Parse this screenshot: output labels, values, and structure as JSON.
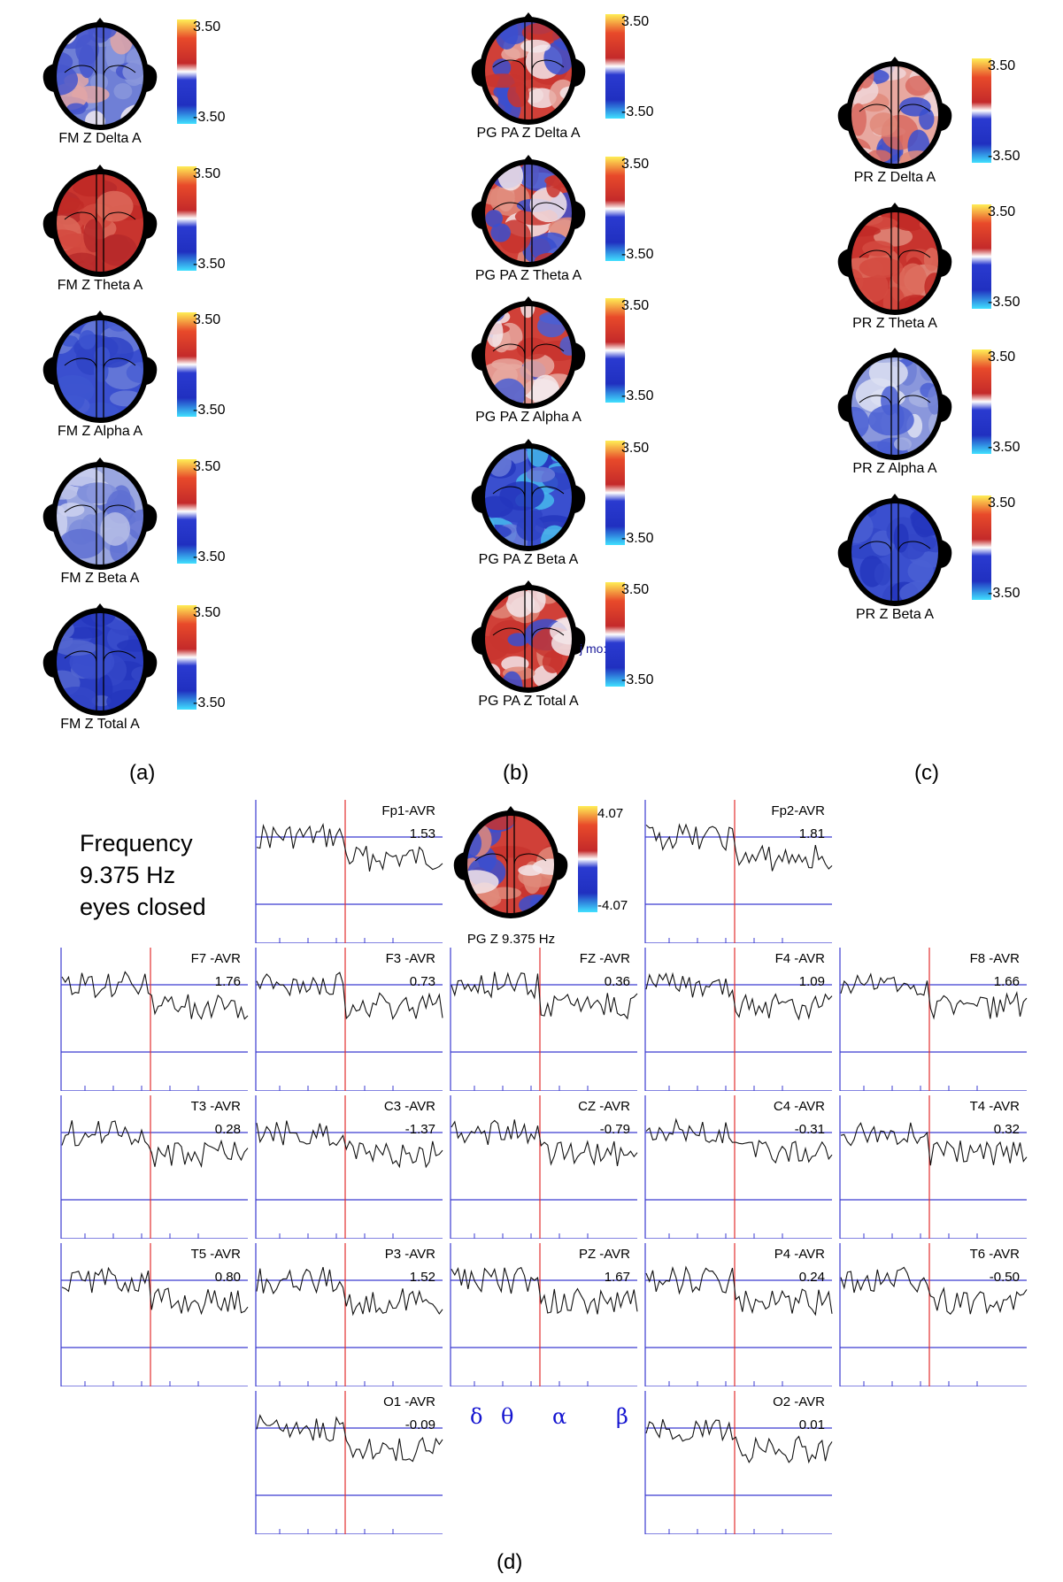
{
  "colorbar": {
    "max": "3.50",
    "min": "-3.50"
  },
  "panels": [
    {
      "label": "(a)",
      "maps": [
        {
          "caption": "FM Z Delta A",
          "palette": [
            "#6f7fd6",
            "#4656cc",
            "#8a97dc",
            "#f2eaf0",
            "#e2a6a6"
          ]
        },
        {
          "caption": "FM Z Theta A",
          "palette": [
            "#c8342e",
            "#d44a40",
            "#c12a26",
            "#dd6a5a",
            "#b72a2a"
          ]
        },
        {
          "caption": "FM Z Alpha A",
          "palette": [
            "#3a4fcf",
            "#4a5fd4",
            "#2f43c5",
            "#6a7bd8",
            "#3d55d0"
          ]
        },
        {
          "caption": "FM Z Beta A",
          "palette": [
            "#9aa6e0",
            "#b6bde6",
            "#7e8ddb",
            "#cdd1ee",
            "#5f70d2"
          ]
        },
        {
          "caption": "FM Z Total A",
          "palette": [
            "#2c3fc4",
            "#3a4ecc",
            "#2536bd",
            "#5466d0",
            "#3447c8"
          ]
        }
      ]
    },
    {
      "label": "(b)",
      "maps": [
        {
          "caption": "PG PA Z Delta A",
          "palette": [
            "#d04038",
            "#e8a8a0",
            "#3a4fcf",
            "#f3e6ea",
            "#c8342e"
          ]
        },
        {
          "caption": "PG PA Z Theta A",
          "palette": [
            "#d04038",
            "#f3e6ea",
            "#3a4fcf",
            "#e08a7a",
            "#c8342e"
          ]
        },
        {
          "caption": "PG PA Z Alpha A",
          "palette": [
            "#d04038",
            "#f3e6ea",
            "#4a5fd4",
            "#e8a8a0",
            "#c8342e"
          ]
        },
        {
          "caption": "PG PA Z Beta A",
          "palette": [
            "#3a4fcf",
            "#2f43c5",
            "#46b8ec",
            "#6a7bd8",
            "#2536bd"
          ]
        },
        {
          "caption": "PG PA Z Total A",
          "palette": [
            "#d04038",
            "#f3e6ea",
            "#3a4fcf",
            "#e08a7a",
            "#c8342e"
          ]
        }
      ]
    },
    {
      "label": "(c)",
      "maps": [
        {
          "caption": "PR Z Delta A",
          "palette": [
            "#e8a8a0",
            "#f0d6d8",
            "#3a4fcf",
            "#e08a7a",
            "#d86a60"
          ]
        },
        {
          "caption": "PR Z Theta A",
          "palette": [
            "#c8342e",
            "#d44a40",
            "#e08a7a",
            "#c12a26",
            "#dd6a5a"
          ]
        },
        {
          "caption": "PR Z Alpha A",
          "palette": [
            "#8a97dc",
            "#6f7fd6",
            "#dde0f2",
            "#4a5fd4",
            "#a5afe2"
          ]
        },
        {
          "caption": "PR Z Beta A",
          "palette": [
            "#3a4fcf",
            "#3447c8",
            "#2f43c5",
            "#4a5fd4",
            "#2536bd"
          ]
        }
      ]
    }
  ],
  "panel_d": {
    "label": "(d)",
    "frequency_text": [
      "Frequency",
      "9.375 Hz",
      "eyes closed"
    ],
    "topomap": {
      "caption": "PG Z 9.375 Hz",
      "max": "4.07",
      "min": "-4.07",
      "palette": [
        "#d04038",
        "#f3e6ea",
        "#3a4fcf",
        "#e08a7a",
        "#c8342e"
      ]
    },
    "bands": [
      "δ",
      "θ",
      "α",
      "β"
    ],
    "artifact_text": "j mo:",
    "channels": [
      {
        "name": "Fp1-AVR",
        "value": "1.53"
      },
      {
        "name": "Fp2-AVR",
        "value": "1.81"
      },
      {
        "name": "F7 -AVR",
        "value": "1.76"
      },
      {
        "name": "F3 -AVR",
        "value": "0.73"
      },
      {
        "name": "FZ -AVR",
        "value": "0.36"
      },
      {
        "name": "F4 -AVR",
        "value": "1.09"
      },
      {
        "name": "F8 -AVR",
        "value": "1.66"
      },
      {
        "name": "T3 -AVR",
        "value": "0.28"
      },
      {
        "name": "C3 -AVR",
        "value": "-1.37"
      },
      {
        "name": "CZ -AVR",
        "value": "-0.79"
      },
      {
        "name": "C4 -AVR",
        "value": "-0.31"
      },
      {
        "name": "T4 -AVR",
        "value": "0.32"
      },
      {
        "name": "T5 -AVR",
        "value": "0.80"
      },
      {
        "name": "P3 -AVR",
        "value": "1.52"
      },
      {
        "name": "PZ -AVR",
        "value": "1.67"
      },
      {
        "name": "P4 -AVR",
        "value": "0.24"
      },
      {
        "name": "T6 -AVR",
        "value": "-0.50"
      },
      {
        "name": "O1 -AVR",
        "value": "-0.09"
      },
      {
        "name": "O2 -AVR",
        "value": "0.01"
      }
    ]
  },
  "colors": {
    "trace": "#111111",
    "axis": "#3b3bd0",
    "marker": "#e23030",
    "band_text": "#1515d0"
  }
}
